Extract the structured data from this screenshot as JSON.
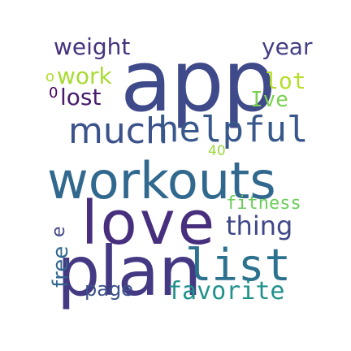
{
  "words": [
    {
      "text": "app",
      "color": "#3e4a89"
    },
    {
      "text": "workouts",
      "color": "#31688e"
    },
    {
      "text": "love",
      "color": "#472f7d"
    },
    {
      "text": "plan",
      "color": "#443983"
    },
    {
      "text": "list",
      "color": "#2c728e"
    },
    {
      "text": "much",
      "color": "#3b528b"
    },
    {
      "text": "helpful",
      "color": "#38588c"
    },
    {
      "text": "thing",
      "color": "#3f4788"
    },
    {
      "text": "weight",
      "color": "#46327e"
    },
    {
      "text": "year",
      "color": "#433e85"
    },
    {
      "text": "work",
      "color": "#a8db34"
    },
    {
      "text": "lot",
      "color": "#b5de2b"
    },
    {
      "text": "lost",
      "color": "#481b6d"
    },
    {
      "text": "Ive",
      "color": "#7ad151"
    },
    {
      "text": "fitness",
      "color": "#6ccd5a"
    },
    {
      "text": "favorite",
      "color": "#21918c"
    },
    {
      "text": "free",
      "color": "#31678e"
    },
    {
      "text": "page",
      "color": "#3b518b"
    },
    {
      "text": "e",
      "color": "#414487"
    },
    {
      "text": "40",
      "color": "#9bd93c"
    },
    {
      "text": "o",
      "color": "#b2dd2d"
    },
    {
      "text": "0",
      "color": "#440154"
    }
  ]
}
